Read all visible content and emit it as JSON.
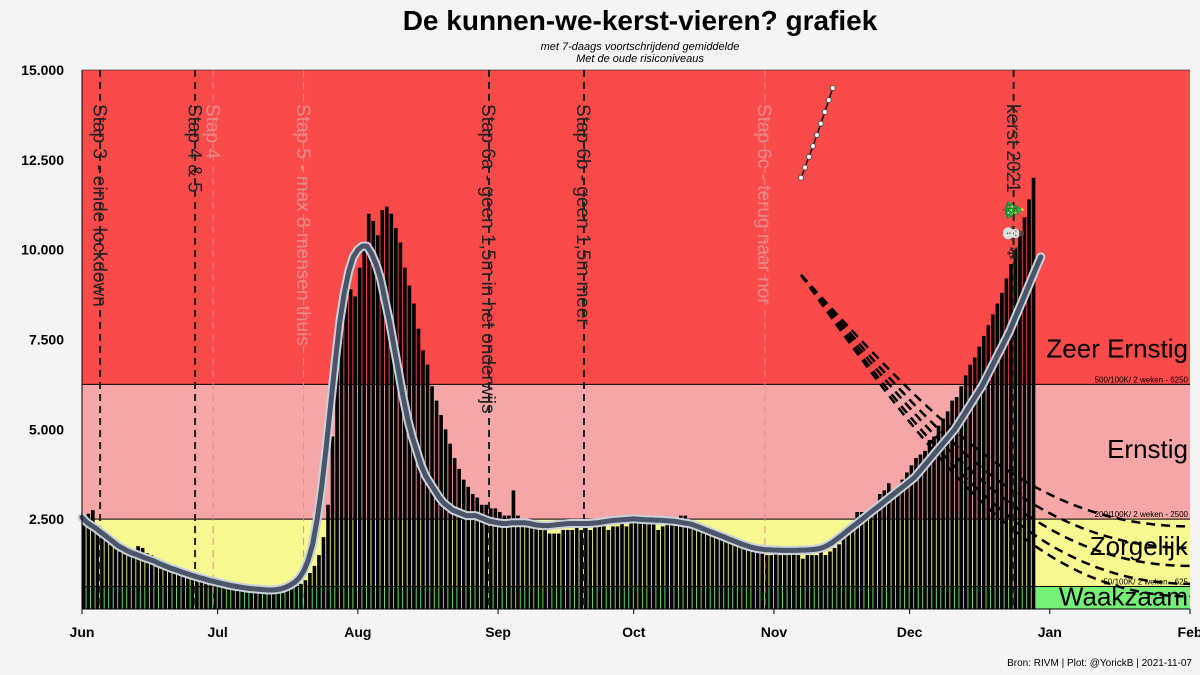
{
  "chart_data": {
    "type": "bar",
    "title": "De kunnen-we-kerst-vieren? grafiek",
    "subtitle_1": "met 7-daags voortschrijdend gemiddelde",
    "subtitle_2": "Met de oude risiconiveaus",
    "source": "Bron: RIVM | Plot: @YorickB  |  2021-11-07",
    "x_range": [
      "2021-06-01",
      "2022-02-01"
    ],
    "ylim": [
      0,
      15000
    ],
    "y_ticks": [
      {
        "value": 2500,
        "label": "2.500"
      },
      {
        "value": 5000,
        "label": "5.000"
      },
      {
        "value": 7500,
        "label": "7.500"
      },
      {
        "value": 10000,
        "label": "10.000"
      },
      {
        "value": 12500,
        "label": "12.500"
      },
      {
        "value": 15000,
        "label": "15.000"
      }
    ],
    "x_ticks": [
      {
        "date": "2021-06-01",
        "label": "Jun"
      },
      {
        "date": "2021-07-01",
        "label": "Jul"
      },
      {
        "date": "2021-08-01",
        "label": "Aug"
      },
      {
        "date": "2021-09-01",
        "label": "Sep"
      },
      {
        "date": "2021-10-01",
        "label": "Oct"
      },
      {
        "date": "2021-11-01",
        "label": "Nov"
      },
      {
        "date": "2021-12-01",
        "label": "Dec"
      },
      {
        "date": "2022-01-01",
        "label": "Jan"
      },
      {
        "date": "2022-02-01",
        "label": "Feb"
      }
    ],
    "zones": [
      {
        "name": "Waakzaam",
        "from": 0,
        "to": 625,
        "color": "#78f078"
      },
      {
        "name": "Zorgelijk",
        "from": 625,
        "to": 2500,
        "color": "#f8f890"
      },
      {
        "name": "Ernstig",
        "from": 2500,
        "to": 6250,
        "color": "#f6a6a6"
      },
      {
        "name": "Zeer Ernstig",
        "from": 6250,
        "to": 15000,
        "color": "#fa4a4a"
      }
    ],
    "zone_colors_note_free": true,
    "thresholds": [
      {
        "value": 625,
        "label": "50/100K/ 2 weken - 625"
      },
      {
        "value": 2500,
        "label": "200/100K/ 2 weken - 2500"
      },
      {
        "value": 6250,
        "label": "500/100K/ 2 weken - 6250"
      }
    ],
    "events": [
      {
        "date": "2021-06-05",
        "label": "Stap 3 - einde lockdown",
        "style": "dark"
      },
      {
        "date": "2021-06-26",
        "label": "Stap 4 & 5",
        "style": "dark"
      },
      {
        "date": "2021-06-30",
        "label": "Stap 4",
        "style": "faded"
      },
      {
        "date": "2021-07-20",
        "label": "Stap 5 - max 8 mensen thuis",
        "style": "faded"
      },
      {
        "date": "2021-08-30",
        "label": "Stap 6a - geen 1,5m in het onderwijs",
        "style": "dark"
      },
      {
        "date": "2021-09-20",
        "label": "Stap 6b - geen 1,5m meer",
        "style": "dark"
      },
      {
        "date": "2021-10-30",
        "label": "Stap 6c - terug naar nor",
        "style": "faded"
      },
      {
        "date": "2021-12-24",
        "label": "kerst 2021 🎄⛄❄",
        "style": "dark"
      }
    ],
    "daily_start": "2021-06-01",
    "daily_cases": [
      2400,
      2650,
      2750,
      2300,
      2100,
      2000,
      1900,
      1800,
      1600,
      1550,
      1500,
      1500,
      1750,
      1700,
      1550,
      1500,
      1400,
      1350,
      1250,
      1200,
      1150,
      1100,
      1100,
      1050,
      950,
      900,
      900,
      850,
      800,
      750,
      700,
      700,
      650,
      650,
      600,
      600,
      550,
      550,
      550,
      500,
      500,
      500,
      450,
      450,
      450,
      550,
      600,
      650,
      700,
      800,
      1000,
      1200,
      1500,
      2000,
      2900,
      4800,
      6900,
      8500,
      9200,
      8900,
      8700,
      9500,
      10200,
      11000,
      10800,
      10400,
      11100,
      11200,
      11000,
      10600,
      10200,
      9500,
      9000,
      8500,
      7800,
      7200,
      6800,
      6200,
      5800,
      5400,
      5000,
      4600,
      4200,
      3900,
      3600,
      3400,
      3200,
      3100,
      2900,
      2900,
      2800,
      2800,
      2700,
      2600,
      2600,
      3300,
      2600,
      2500,
      2500,
      2400,
      2300,
      2200,
      2400,
      2100,
      2100,
      2100,
      2200,
      2200,
      2200,
      2300,
      2200,
      2300,
      2200,
      2300,
      2300,
      2300,
      2200,
      2300,
      2300,
      2400,
      2300,
      2500,
      2500,
      2600,
      2600,
      2500,
      2400,
      2200,
      2300,
      2500,
      2500,
      2400,
      2600,
      2600,
      2300,
      2300,
      2400,
      2300,
      2200,
      2200,
      2100,
      2000,
      2100,
      1900,
      1900,
      1800,
      1800,
      1700,
      1700,
      1700,
      1600,
      1500,
      1500,
      1600,
      1500,
      1500,
      1500,
      1600,
      1500,
      1400,
      1500,
      1500,
      1500,
      1600,
      1500,
      1600,
      1700,
      1800,
      2000,
      2200,
      2400,
      2700,
      2700,
      2600,
      2800,
      2900,
      3200,
      3300,
      3500,
      3300,
      3400,
      3600,
      3800,
      4000,
      4200,
      4300,
      4400,
      4700,
      4800,
      5100,
      5300,
      5500,
      5800,
      5900,
      6200,
      6500,
      6800,
      7000,
      7300,
      7600,
      7900,
      8200,
      8500,
      8800,
      9200,
      9600,
      10000,
      10400,
      10900,
      11400,
      12000
    ],
    "rolling_avg_start": "2021-06-01",
    "rolling_avg": [
      2550,
      2420,
      2330,
      2250,
      2150,
      2060,
      1960,
      1860,
      1760,
      1690,
      1620,
      1560,
      1520,
      1470,
      1420,
      1380,
      1330,
      1270,
      1220,
      1170,
      1120,
      1080,
      1030,
      990,
      950,
      910,
      870,
      840,
      800,
      770,
      740,
      710,
      680,
      650,
      630,
      610,
      590,
      570,
      560,
      550,
      540,
      530,
      530,
      540,
      560,
      600,
      660,
      740,
      860,
      1050,
      1350,
      1800,
      2500,
      3400,
      4500,
      5700,
      6900,
      8000,
      8800,
      9400,
      9800,
      10000,
      10100,
      10100,
      9900,
      9600,
      9200,
      8600,
      8000,
      7300,
      6600,
      5900,
      5300,
      4800,
      4400,
      4000,
      3700,
      3500,
      3300,
      3100,
      2950,
      2850,
      2750,
      2700,
      2650,
      2600,
      2600,
      2600,
      2550,
      2500,
      2450,
      2420,
      2400,
      2380,
      2380,
      2400,
      2400,
      2400,
      2400,
      2380,
      2350,
      2330,
      2320,
      2320,
      2330,
      2350,
      2360,
      2370,
      2380,
      2380,
      2380,
      2380,
      2380,
      2390,
      2400,
      2420,
      2440,
      2460,
      2470,
      2480,
      2490,
      2500,
      2510,
      2500,
      2490,
      2480,
      2480,
      2470,
      2470,
      2460,
      2450,
      2440,
      2420,
      2400,
      2380,
      2350,
      2300,
      2250,
      2200,
      2150,
      2100,
      2050,
      2000,
      1950,
      1900,
      1850,
      1800,
      1760,
      1720,
      1690,
      1670,
      1650,
      1650,
      1640,
      1640,
      1630,
      1630,
      1630,
      1630,
      1640,
      1640,
      1650,
      1660,
      1680,
      1720,
      1780,
      1860,
      1950,
      2050,
      2150,
      2250,
      2350,
      2450,
      2550,
      2650,
      2750,
      2850,
      2950,
      3050,
      3150,
      3250,
      3350,
      3450,
      3550,
      3650,
      3800,
      3950,
      4100,
      4250,
      4400,
      4550,
      4700,
      4850,
      5000,
      5200,
      5400,
      5600,
      5800,
      6000,
      6200,
      6450,
      6700,
      6950,
      7200,
      7450,
      7700,
      8000,
      8300,
      8600,
      8900,
      9200,
      9500,
      9800
    ],
    "forecast": {
      "start": "2021-11-07",
      "start_value": 12000,
      "end_date": "2021-11-14",
      "end_value": 14500
    },
    "decay_scenarios": [
      {
        "end_date": "2022-02-01",
        "end_value": 2300
      },
      {
        "end_date": "2022-02-01",
        "end_value": 1700
      },
      {
        "end_date": "2022-02-01",
        "end_value": 1200
      },
      {
        "end_date": "2022-02-01",
        "end_value": 700
      },
      {
        "end_date": "2022-02-01",
        "end_value": 350
      }
    ],
    "colors": {
      "bars": "#000000",
      "bar_projection": "#ff2020",
      "rolling_line": "#4b5568",
      "rolling_outline": "#c9d1dc",
      "vline_dark": "#222222",
      "vline_faded": "#e88a8a"
    }
  }
}
